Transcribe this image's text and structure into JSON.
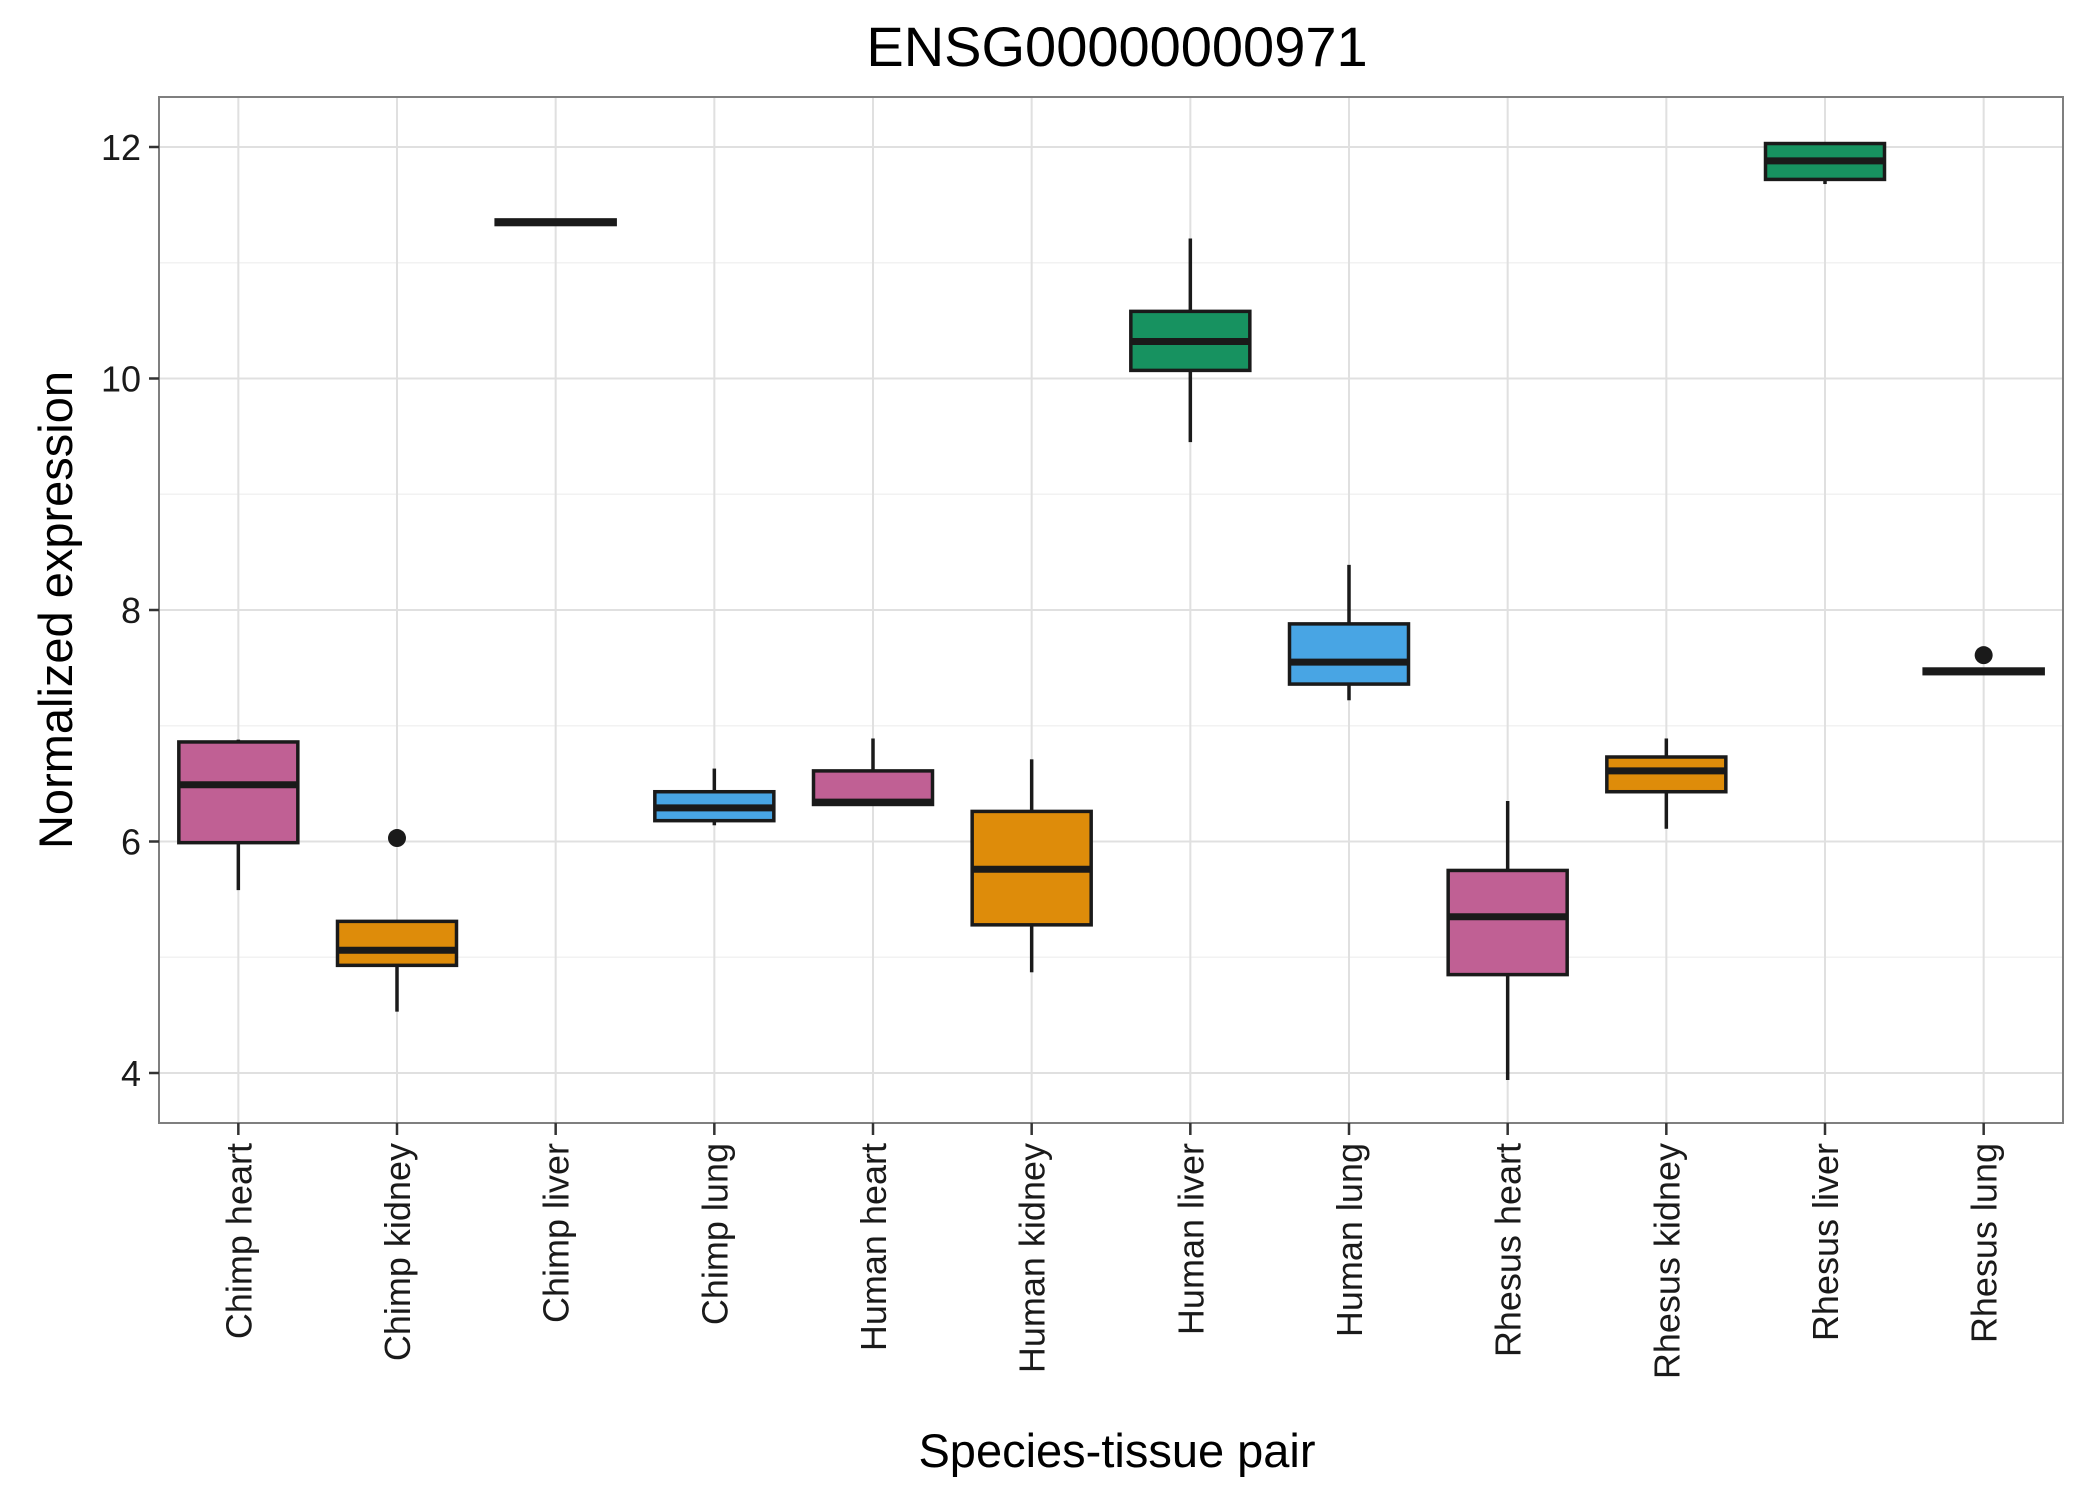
{
  "chart_data": {
    "type": "box",
    "title": "ENSG00000000971",
    "xlabel": "Species-tissue pair",
    "ylabel": "Normalized expression",
    "ylim": [
      3.55,
      12.42
    ],
    "yticks": [
      4,
      6,
      8,
      10,
      12
    ],
    "grid": true,
    "legend": "none",
    "categories": [
      "Chimp heart",
      "Chimp kidney",
      "Chimp liver",
      "Chimp lung",
      "Human heart",
      "Human kidney",
      "Human liver",
      "Human lung",
      "Rhesus heart",
      "Rhesus kidney",
      "Rhesus liver",
      "Rhesus lung"
    ],
    "boxes": [
      {
        "category": "Chimp heart",
        "tissue": "heart",
        "whisker_low": 5.58,
        "q1": 5.99,
        "median": 6.49,
        "q3": 6.86,
        "whisker_high": 6.88,
        "outliers": []
      },
      {
        "category": "Chimp kidney",
        "tissue": "kidney",
        "whisker_low": 4.53,
        "q1": 4.93,
        "median": 5.06,
        "q3": 5.31,
        "whisker_high": 5.31,
        "outliers": [
          6.03
        ]
      },
      {
        "category": "Chimp liver",
        "tissue": "liver",
        "whisker_low": 11.33,
        "q1": 11.33,
        "median": 11.35,
        "q3": 11.37,
        "whisker_high": 11.38,
        "outliers": []
      },
      {
        "category": "Chimp lung",
        "tissue": "lung",
        "whisker_low": 6.14,
        "q1": 6.18,
        "median": 6.29,
        "q3": 6.43,
        "whisker_high": 6.63,
        "outliers": []
      },
      {
        "category": "Human heart",
        "tissue": "heart",
        "whisker_low": 6.32,
        "q1": 6.32,
        "median": 6.34,
        "q3": 6.61,
        "whisker_high": 6.89,
        "outliers": []
      },
      {
        "category": "Human kidney",
        "tissue": "kidney",
        "whisker_low": 4.87,
        "q1": 5.28,
        "median": 5.76,
        "q3": 6.26,
        "whisker_high": 6.71,
        "outliers": []
      },
      {
        "category": "Human liver",
        "tissue": "liver",
        "whisker_low": 9.45,
        "q1": 10.07,
        "median": 10.32,
        "q3": 10.58,
        "whisker_high": 11.21,
        "outliers": []
      },
      {
        "category": "Human lung",
        "tissue": "lung",
        "whisker_low": 7.22,
        "q1": 7.36,
        "median": 7.55,
        "q3": 7.88,
        "whisker_high": 8.39,
        "outliers": []
      },
      {
        "category": "Rhesus heart",
        "tissue": "heart",
        "whisker_low": 3.94,
        "q1": 4.85,
        "median": 5.35,
        "q3": 5.75,
        "whisker_high": 6.35,
        "outliers": []
      },
      {
        "category": "Rhesus kidney",
        "tissue": "kidney",
        "whisker_low": 6.11,
        "q1": 6.43,
        "median": 6.61,
        "q3": 6.73,
        "whisker_high": 6.89,
        "outliers": []
      },
      {
        "category": "Rhesus liver",
        "tissue": "liver",
        "whisker_low": 11.68,
        "q1": 11.72,
        "median": 11.88,
        "q3": 12.03,
        "whisker_high": 12.03,
        "outliers": []
      },
      {
        "category": "Rhesus lung",
        "tissue": "lung",
        "whisker_low": 7.44,
        "q1": 7.45,
        "median": 7.47,
        "q3": 7.49,
        "whisker_high": 7.5,
        "outliers": [
          7.61
        ]
      }
    ],
    "tissue_colors": {
      "heart": "#C06094",
      "kidney": "#DE8C0A",
      "liver": "#179260",
      "lung": "#48A5E4"
    }
  }
}
